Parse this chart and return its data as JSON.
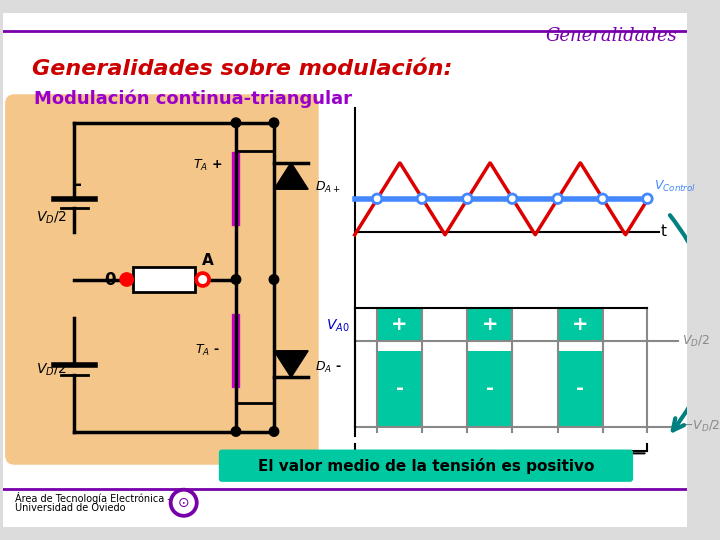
{
  "title_top_right": "Generalidades",
  "title_main": "Generalidades sobre modulación:",
  "subtitle": "Modulación continua-triangular",
  "bg_color": "#f0f0f0",
  "slide_bg": "#e8e8e8",
  "circuit_bg": "#f5c68a",
  "teal_color": "#00c8a0",
  "red_wave_color": "#dd0000",
  "blue_control_color": "#4488ff",
  "purple_line_color": "#cc00cc",
  "gray_line_color": "#888888",
  "green_arrow_color": "#008080",
  "title_color": "#cc0000",
  "subtitle_color": "#9900cc",
  "label_color_blue": "#0000cc",
  "bottom_text": "El valor medio de la tensión es positivo",
  "bottom_text_bg": "#00c8a0",
  "footer_text1": "Área de Tecnología Electrónica -",
  "footer_text2": "Universidad de Oviedo"
}
